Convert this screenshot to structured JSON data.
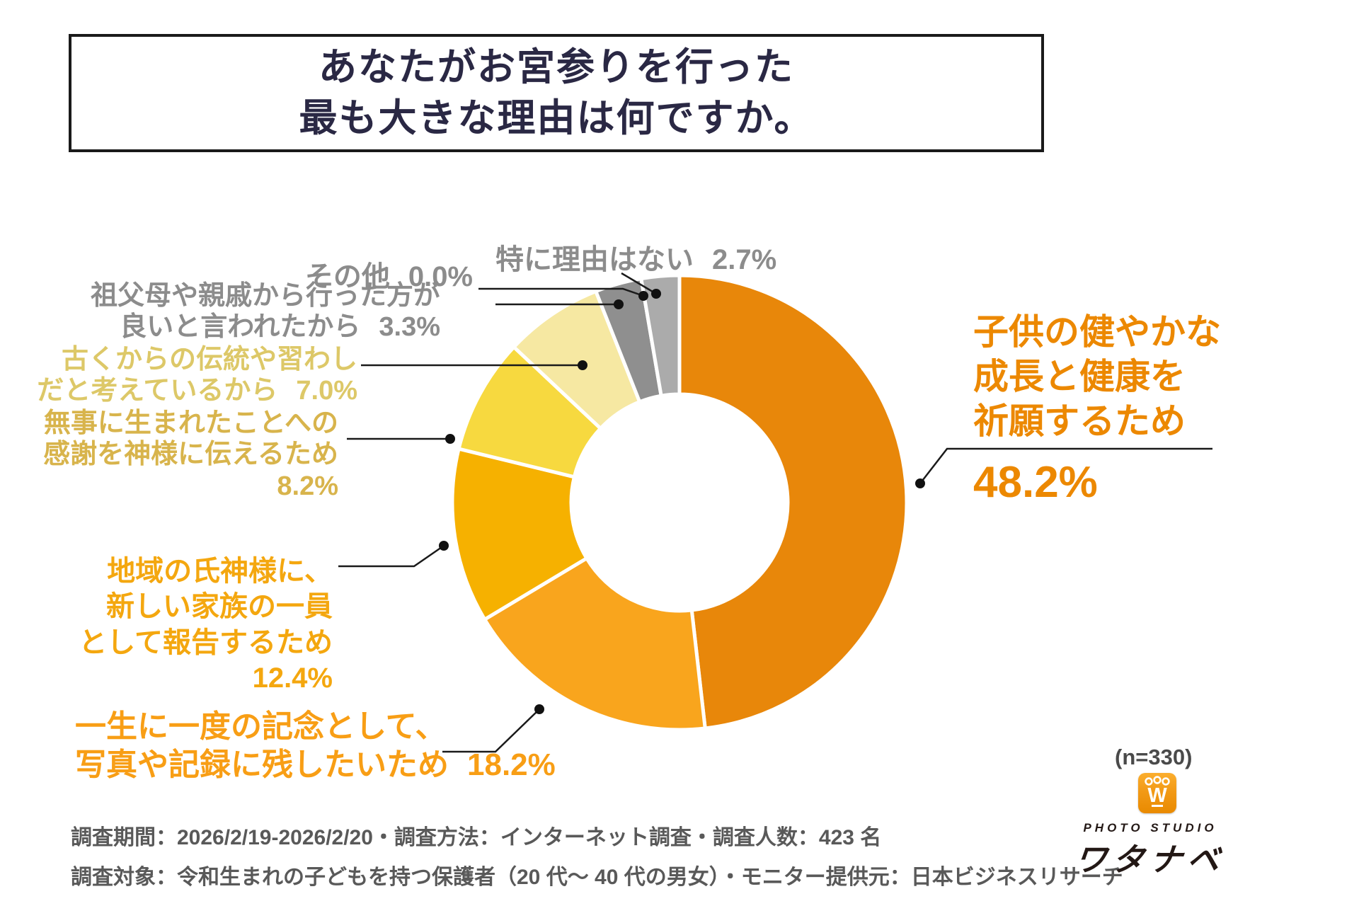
{
  "title": {
    "line1": "あなたがお宮参りを行った",
    "line2": "最も大きな理由は何ですか。"
  },
  "chart_data": {
    "type": "pie",
    "subtype": "donut",
    "title": "あなたがお宮参りを行った最も大きな理由は何ですか。",
    "unit": "%",
    "sample_note": "(n=330)",
    "start_angle_deg_from_top": 0,
    "direction": "clockwise",
    "slices": [
      {
        "label": "子供の健やかな成長と健康を祈願するため",
        "value": 48.2,
        "color": "#e8870a"
      },
      {
        "label": "一生に一度の記念として、写真や記録に残したいため",
        "value": 18.2,
        "color": "#f9a51d"
      },
      {
        "label": "地域の氏神様に、新しい家族の一員として報告するため",
        "value": 12.4,
        "color": "#f6b100"
      },
      {
        "label": "無事に生まれたことへの感謝を神様に伝えるため",
        "value": 8.2,
        "color": "#f7d93f"
      },
      {
        "label": "古くからの伝統や習わしだと考えているから",
        "value": 7.0,
        "color": "#f6e8a2"
      },
      {
        "label": "祖父母や親戚から行った方が良いと言われたから",
        "value": 3.3,
        "color": "#8f8f8f"
      },
      {
        "label": "その他",
        "value": 0.0,
        "color": "#8f8f8f"
      },
      {
        "label": "特に理由はない",
        "value": 2.7,
        "color": "#ababab"
      }
    ]
  },
  "callouts": {
    "no_reason": {
      "text": "特に理由はない",
      "pct": "2.7%"
    },
    "other": {
      "text": "その他",
      "pct": "0.0%"
    },
    "grandparents": {
      "line1": "祖父母や親戚から行った方が",
      "line2": "良いと言われたから",
      "pct": "3.3%"
    },
    "tradition": {
      "line1": "古くからの伝統や習わし",
      "line2": "だと考えているから",
      "pct": "7.0%"
    },
    "gratitude": {
      "line1": "無事に生まれたことへの",
      "line2": "感謝を神様に伝えるため",
      "pct": "8.2%"
    },
    "ujigami": {
      "line1": "地域の氏神様に、",
      "line2": "新しい家族の一員",
      "line3": "として報告するため",
      "pct": "12.4%"
    },
    "memorial": {
      "line1": "一生に一度の記念として、",
      "line2": "写真や記録に残したいため",
      "pct": "18.2%"
    },
    "health": {
      "line1": "子供の健やかな",
      "line2": "成長と健康を",
      "line3": "祈願するため",
      "pct": "48.2%"
    }
  },
  "footer": {
    "line1": "調査期間：2026/2/19-2026/2/20・調査方法：インターネット調査・調査人数：423 名",
    "line2": "調査対象：令和生まれの子どもを持つ保護者（20 代〜 40 代の男女）・モニター提供元：日本ビジネスリサーチ"
  },
  "logo": {
    "sample": "(n=330)",
    "studio": "PHOTO STUDIO",
    "name": "ワタナベ",
    "mark_letter": "W",
    "mark_color": "#f29a16"
  }
}
